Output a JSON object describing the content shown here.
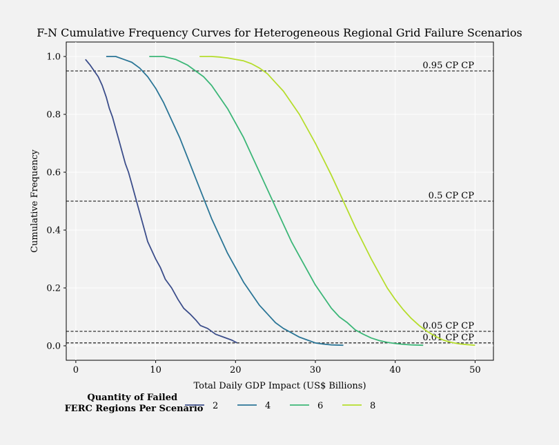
{
  "chart_data": {
    "type": "line",
    "title": "F-N Cumulative Frequency Curves for Heterogeneous Regional Grid Failure Scenarios",
    "xlabel": "Total Daily GDP Impact (US$ Billions)",
    "ylabel": "Cumulative Frequency",
    "xlim": [
      -1.2,
      52.3
    ],
    "ylim": [
      -0.05,
      1.05
    ],
    "xticks": [
      0,
      10,
      20,
      30,
      40,
      50
    ],
    "yticks": [
      0.0,
      0.2,
      0.4,
      0.6,
      0.8,
      1.0
    ],
    "grid": true,
    "legend": {
      "title": "Quantity of Failed\nFERC Regions Per Scenario",
      "placement": "bottom"
    },
    "reference_lines": [
      {
        "y": 0.95,
        "label": "0.95 CP CP"
      },
      {
        "y": 0.5,
        "label": "0.5 CP CP"
      },
      {
        "y": 0.05,
        "label": "0.05 CP CP"
      },
      {
        "y": 0.01,
        "label": "0.01 CP CP"
      }
    ],
    "series": [
      {
        "name": "2",
        "color": "#3b4d8a",
        "x": [
          1.2,
          1.8,
          2.3,
          2.8,
          3.3,
          3.8,
          4.2,
          4.6,
          5.0,
          5.4,
          5.8,
          6.2,
          6.6,
          7.0,
          7.4,
          7.8,
          8.2,
          8.6,
          9.0,
          9.5,
          10.0,
          10.6,
          11.2,
          12.0,
          12.8,
          13.5,
          14.3,
          15.0,
          15.6,
          16.5,
          17.5,
          18.5,
          19.5,
          20.2
        ],
        "y": [
          0.99,
          0.97,
          0.95,
          0.93,
          0.9,
          0.86,
          0.82,
          0.79,
          0.75,
          0.71,
          0.67,
          0.63,
          0.6,
          0.56,
          0.52,
          0.48,
          0.44,
          0.4,
          0.36,
          0.33,
          0.3,
          0.27,
          0.23,
          0.2,
          0.16,
          0.13,
          0.11,
          0.09,
          0.07,
          0.06,
          0.04,
          0.03,
          0.02,
          0.01
        ]
      },
      {
        "name": "4",
        "color": "#2a7596",
        "x": [
          3.8,
          5.0,
          6.0,
          7.0,
          8.0,
          9.0,
          10.0,
          11.0,
          12.0,
          13.0,
          14.0,
          15.0,
          16.0,
          17.0,
          18.0,
          19.0,
          20.0,
          21.0,
          22.0,
          23.0,
          24.0,
          25.0,
          26.0,
          27.0,
          28.0,
          29.0,
          30.0,
          31.0,
          32.0,
          33.5
        ],
        "y": [
          1.0,
          1.0,
          0.99,
          0.98,
          0.96,
          0.93,
          0.89,
          0.84,
          0.78,
          0.72,
          0.65,
          0.58,
          0.51,
          0.44,
          0.38,
          0.32,
          0.27,
          0.22,
          0.18,
          0.14,
          0.11,
          0.08,
          0.06,
          0.045,
          0.03,
          0.02,
          0.01,
          0.006,
          0.003,
          0.002
        ]
      },
      {
        "name": "6",
        "color": "#3bb677",
        "x": [
          9.2,
          11.0,
          12.5,
          14.0,
          15.0,
          16.0,
          17.0,
          18.0,
          19.0,
          20.0,
          21.0,
          22.0,
          23.0,
          24.0,
          25.0,
          26.0,
          27.0,
          28.0,
          29.0,
          30.0,
          31.0,
          32.0,
          33.0,
          34.0,
          35.0,
          36.0,
          37.0,
          38.0,
          39.0,
          40.0,
          41.0,
          42.0,
          43.5
        ],
        "y": [
          1.0,
          1.0,
          0.99,
          0.97,
          0.95,
          0.93,
          0.9,
          0.86,
          0.82,
          0.77,
          0.72,
          0.66,
          0.6,
          0.54,
          0.48,
          0.42,
          0.36,
          0.31,
          0.26,
          0.21,
          0.17,
          0.13,
          0.1,
          0.08,
          0.055,
          0.04,
          0.027,
          0.018,
          0.012,
          0.008,
          0.005,
          0.003,
          0.002
        ]
      },
      {
        "name": "8",
        "color": "#b5dd2b",
        "x": [
          15.5,
          17.0,
          18.0,
          19.0,
          20.0,
          21.0,
          22.0,
          23.0,
          24.0,
          25.0,
          26.0,
          27.0,
          28.0,
          29.0,
          30.0,
          31.0,
          32.0,
          33.0,
          34.0,
          35.0,
          36.0,
          37.0,
          38.0,
          39.0,
          40.0,
          41.0,
          42.0,
          43.0,
          44.0,
          45.0,
          46.0,
          47.0,
          48.0,
          49.0,
          50.0
        ],
        "y": [
          1.0,
          1.0,
          0.998,
          0.995,
          0.99,
          0.985,
          0.975,
          0.96,
          0.94,
          0.91,
          0.88,
          0.84,
          0.8,
          0.75,
          0.7,
          0.645,
          0.59,
          0.53,
          0.47,
          0.41,
          0.355,
          0.3,
          0.25,
          0.2,
          0.16,
          0.125,
          0.095,
          0.07,
          0.05,
          0.033,
          0.02,
          0.012,
          0.007,
          0.004,
          0.002
        ]
      }
    ]
  }
}
